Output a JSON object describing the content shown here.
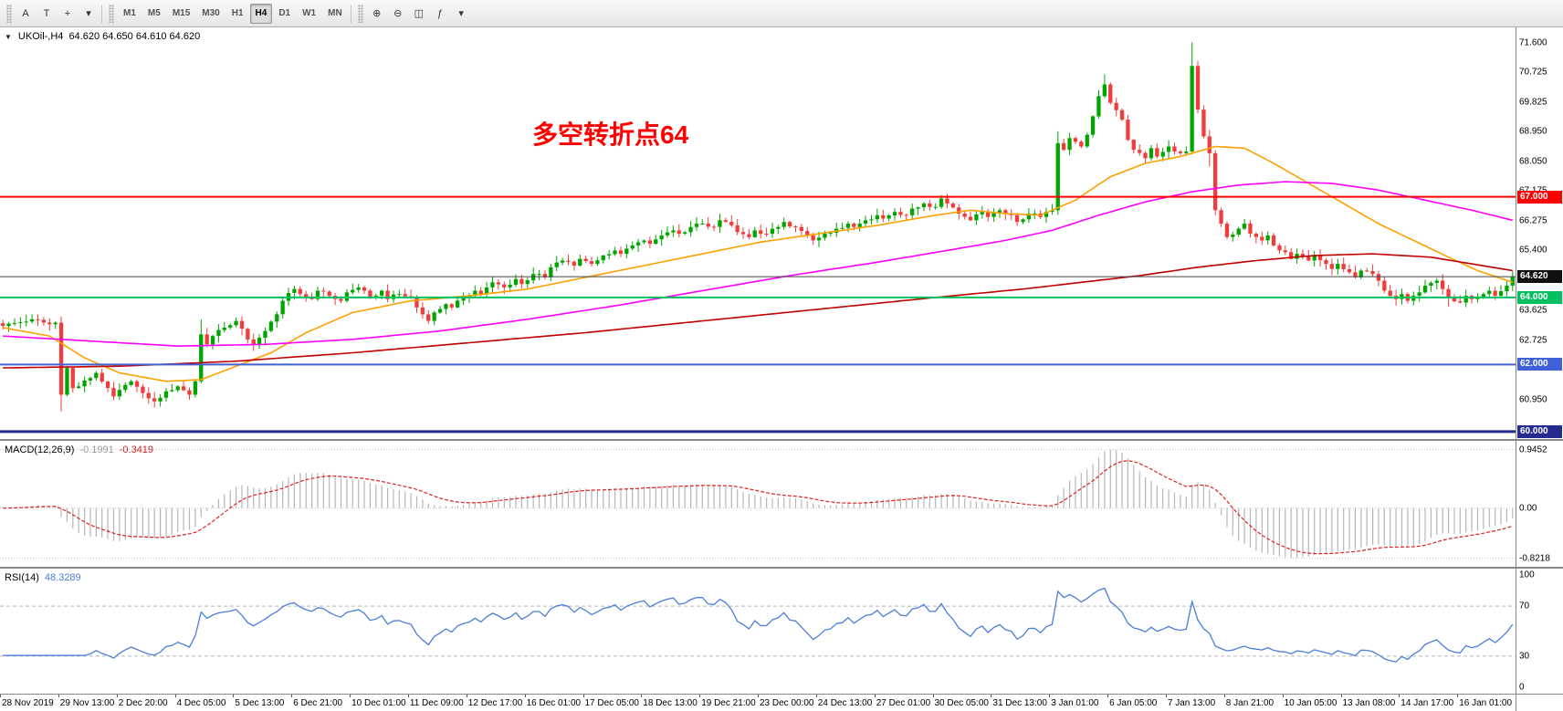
{
  "toolbar": {
    "tools": [
      {
        "name": "text-label-tool",
        "glyph": "A"
      },
      {
        "name": "text-tool",
        "glyph": "T"
      },
      {
        "name": "crosshair-tool",
        "glyph": "+"
      },
      {
        "name": "drawing-tools-dropdown-icon",
        "glyph": "▾"
      }
    ],
    "timeframes": [
      {
        "label": "M1"
      },
      {
        "label": "M5"
      },
      {
        "label": "M15"
      },
      {
        "label": "M30"
      },
      {
        "label": "H1"
      },
      {
        "label": "H4",
        "active": true
      },
      {
        "label": "D1"
      },
      {
        "label": "W1"
      },
      {
        "label": "MN"
      }
    ],
    "right_icons": [
      {
        "name": "zoom-in-icon",
        "glyph": "⊕"
      },
      {
        "name": "zoom-out-icon",
        "glyph": "⊖"
      },
      {
        "name": "tile-windows-icon",
        "glyph": "◫"
      },
      {
        "name": "indicators-icon",
        "glyph": "ƒ"
      },
      {
        "name": "toolbar-dropdown-icon",
        "glyph": "▾"
      }
    ]
  },
  "chart_data": {
    "type": "candlestick",
    "header": {
      "symbol_period": "UKOil-,H4",
      "ohlc": "64.620 64.650 64.610 64.620"
    },
    "annotation": {
      "text": "多空转折点64",
      "color": "#ff0000"
    },
    "price_range": [
      59.78,
      72.05
    ],
    "price_axis_labels": [
      "71.600",
      "70.725",
      "69.825",
      "68.950",
      "68.050",
      "67.175",
      "66.275",
      "65.400",
      "63.625",
      "62.725",
      "60.950"
    ],
    "current_price": {
      "value": 64.62,
      "label": "64.620",
      "badge_bg": "#111111",
      "line_color": "#444444"
    },
    "levels": [
      {
        "price": 67.0,
        "label": "67.000",
        "color": "#ff0000",
        "thickness": 2
      },
      {
        "price": 64.0,
        "label": "64.000",
        "color": "#00c060",
        "thickness": 2
      },
      {
        "price": 62.0,
        "label": "62.000",
        "color": "#4060d8",
        "thickness": 2
      },
      {
        "price": 60.0,
        "label": "60.000",
        "color": "#252a8f",
        "thickness": 3
      }
    ],
    "candles": {
      "count": 260,
      "bull_color": "#00a600",
      "bear_color": "#f23c3c",
      "keypoints": [
        [
          0,
          63.15
        ],
        [
          5,
          63.35
        ],
        [
          8,
          63.2
        ],
        [
          9,
          63.25
        ],
        [
          10,
          61.1
        ],
        [
          11,
          61.9
        ],
        [
          12,
          61.3
        ],
        [
          13,
          61.35
        ],
        [
          16,
          61.75
        ],
        [
          18,
          61.3
        ],
        [
          19,
          61.05
        ],
        [
          22,
          61.5
        ],
        [
          24,
          61.15
        ],
        [
          26,
          60.9
        ],
        [
          28,
          61.2
        ],
        [
          30,
          61.35
        ],
        [
          32,
          61.1
        ],
        [
          33,
          61.5
        ],
        [
          34,
          62.9
        ],
        [
          35,
          62.6
        ],
        [
          36,
          62.85
        ],
        [
          38,
          63.1
        ],
        [
          40,
          63.3
        ],
        [
          42,
          62.75
        ],
        [
          43,
          62.6
        ],
        [
          45,
          63.0
        ],
        [
          47,
          63.5
        ],
        [
          48,
          63.9
        ],
        [
          50,
          64.25
        ],
        [
          51,
          64.1
        ],
        [
          53,
          63.95
        ],
        [
          54,
          64.2
        ],
        [
          56,
          64.05
        ],
        [
          58,
          63.9
        ],
        [
          59,
          64.15
        ],
        [
          61,
          64.3
        ],
        [
          63,
          64.0
        ],
        [
          65,
          64.2
        ],
        [
          66,
          63.95
        ],
        [
          68,
          64.1
        ],
        [
          70,
          64.0
        ],
        [
          71,
          63.7
        ],
        [
          73,
          63.3
        ],
        [
          74,
          63.55
        ],
        [
          76,
          63.8
        ],
        [
          77,
          63.7
        ],
        [
          79,
          64.0
        ],
        [
          81,
          64.2
        ],
        [
          82,
          64.1
        ],
        [
          84,
          64.45
        ],
        [
          86,
          64.3
        ],
        [
          88,
          64.55
        ],
        [
          89,
          64.4
        ],
        [
          91,
          64.7
        ],
        [
          93,
          64.6
        ],
        [
          94,
          64.9
        ],
        [
          96,
          65.1
        ],
        [
          98,
          64.95
        ],
        [
          99,
          65.15
        ],
        [
          101,
          65.0
        ],
        [
          103,
          65.25
        ],
        [
          105,
          65.4
        ],
        [
          106,
          65.3
        ],
        [
          108,
          65.55
        ],
        [
          110,
          65.7
        ],
        [
          111,
          65.6
        ],
        [
          113,
          65.85
        ],
        [
          115,
          66.0
        ],
        [
          116,
          65.9
        ],
        [
          118,
          66.1
        ],
        [
          120,
          66.2
        ],
        [
          122,
          66.1
        ],
        [
          123,
          66.3
        ],
        [
          125,
          66.15
        ],
        [
          126,
          65.95
        ],
        [
          128,
          65.8
        ],
        [
          129,
          66.0
        ],
        [
          131,
          65.9
        ],
        [
          133,
          66.1
        ],
        [
          134,
          66.25
        ],
        [
          136,
          66.1
        ],
        [
          138,
          65.85
        ],
        [
          139,
          65.7
        ],
        [
          141,
          65.9
        ],
        [
          143,
          66.05
        ],
        [
          145,
          66.2
        ],
        [
          146,
          66.1
        ],
        [
          148,
          66.3
        ],
        [
          150,
          66.45
        ],
        [
          151,
          66.35
        ],
        [
          153,
          66.55
        ],
        [
          155,
          66.45
        ],
        [
          156,
          66.65
        ],
        [
          158,
          66.8
        ],
        [
          160,
          66.7
        ],
        [
          161,
          66.95
        ],
        [
          162,
          66.8
        ],
        [
          164,
          66.5
        ],
        [
          166,
          66.3
        ],
        [
          168,
          66.55
        ],
        [
          169,
          66.4
        ],
        [
          171,
          66.6
        ],
        [
          173,
          66.45
        ],
        [
          174,
          66.25
        ],
        [
          176,
          66.5
        ],
        [
          178,
          66.4
        ],
        [
          179,
          66.55
        ],
        [
          180,
          66.6
        ],
        [
          181,
          68.6
        ],
        [
          182,
          68.4
        ],
        [
          183,
          68.75
        ],
        [
          185,
          68.5
        ],
        [
          186,
          68.85
        ],
        [
          187,
          69.4
        ],
        [
          188,
          70.0
        ],
        [
          189,
          70.35
        ],
        [
          190,
          69.8
        ],
        [
          192,
          69.3
        ],
        [
          193,
          68.7
        ],
        [
          194,
          68.4
        ],
        [
          196,
          68.15
        ],
        [
          197,
          68.45
        ],
        [
          198,
          68.2
        ],
        [
          200,
          68.5
        ],
        [
          201,
          68.35
        ],
        [
          202,
          68.3
        ],
        [
          203,
          68.35
        ],
        [
          204,
          70.9
        ],
        [
          205,
          69.6
        ],
        [
          206,
          68.8
        ],
        [
          207,
          68.3
        ],
        [
          208,
          66.6
        ],
        [
          209,
          66.2
        ],
        [
          210,
          65.8
        ],
        [
          212,
          66.05
        ],
        [
          213,
          66.2
        ],
        [
          214,
          65.9
        ],
        [
          216,
          65.7
        ],
        [
          217,
          65.85
        ],
        [
          218,
          65.55
        ],
        [
          220,
          65.35
        ],
        [
          221,
          65.15
        ],
        [
          222,
          65.3
        ],
        [
          224,
          65.1
        ],
        [
          225,
          65.25
        ],
        [
          227,
          65.0
        ],
        [
          228,
          64.85
        ],
        [
          229,
          65.0
        ],
        [
          231,
          64.75
        ],
        [
          232,
          64.6
        ],
        [
          233,
          64.8
        ],
        [
          235,
          64.7
        ],
        [
          236,
          64.5
        ],
        [
          237,
          64.2
        ],
        [
          239,
          63.95
        ],
        [
          240,
          64.1
        ],
        [
          241,
          63.9
        ],
        [
          243,
          64.15
        ],
        [
          244,
          64.35
        ],
        [
          246,
          64.5
        ],
        [
          247,
          64.25
        ],
        [
          248,
          64.0
        ],
        [
          250,
          63.85
        ],
        [
          251,
          64.05
        ],
        [
          252,
          63.95
        ],
        [
          254,
          64.1
        ],
        [
          255,
          64.2
        ],
        [
          256,
          64.05
        ],
        [
          258,
          64.35
        ],
        [
          259,
          64.62
        ]
      ],
      "high_overrides": {
        "34": 63.35,
        "161": 67.05,
        "181": 68.95,
        "189": 70.65,
        "204": 71.6
      },
      "low_overrides": {
        "10": 60.6,
        "26": 60.72,
        "207": 67.9,
        "239": 63.75,
        "248": 63.72
      }
    },
    "overlays": [
      {
        "name": "ma-fast-line",
        "color": "#ffa000",
        "points": [
          [
            0,
            63.1
          ],
          [
            8,
            62.85
          ],
          [
            14,
            62.2
          ],
          [
            20,
            61.75
          ],
          [
            28,
            61.5
          ],
          [
            34,
            61.55
          ],
          [
            40,
            61.95
          ],
          [
            46,
            62.35
          ],
          [
            52,
            62.95
          ],
          [
            60,
            63.55
          ],
          [
            70,
            63.9
          ],
          [
            80,
            64.05
          ],
          [
            90,
            64.25
          ],
          [
            100,
            64.6
          ],
          [
            110,
            64.95
          ],
          [
            120,
            65.3
          ],
          [
            130,
            65.65
          ],
          [
            140,
            65.9
          ],
          [
            150,
            66.15
          ],
          [
            160,
            66.45
          ],
          [
            166,
            66.6
          ],
          [
            172,
            66.5
          ],
          [
            178,
            66.45
          ],
          [
            184,
            66.9
          ],
          [
            190,
            67.6
          ],
          [
            196,
            68.0
          ],
          [
            202,
            68.2
          ],
          [
            208,
            68.5
          ],
          [
            213,
            68.45
          ],
          [
            218,
            68.0
          ],
          [
            224,
            67.4
          ],
          [
            230,
            66.8
          ],
          [
            236,
            66.2
          ],
          [
            242,
            65.7
          ],
          [
            248,
            65.2
          ],
          [
            253,
            64.8
          ],
          [
            259,
            64.45
          ]
        ]
      },
      {
        "name": "ma-mid-line",
        "color": "#ff00ff",
        "points": [
          [
            0,
            62.85
          ],
          [
            15,
            62.7
          ],
          [
            30,
            62.55
          ],
          [
            45,
            62.6
          ],
          [
            60,
            62.75
          ],
          [
            75,
            63.0
          ],
          [
            90,
            63.35
          ],
          [
            105,
            63.75
          ],
          [
            120,
            64.2
          ],
          [
            135,
            64.65
          ],
          [
            150,
            65.05
          ],
          [
            162,
            65.4
          ],
          [
            172,
            65.7
          ],
          [
            180,
            66.0
          ],
          [
            188,
            66.45
          ],
          [
            196,
            66.85
          ],
          [
            204,
            67.15
          ],
          [
            212,
            67.35
          ],
          [
            220,
            67.45
          ],
          [
            228,
            67.4
          ],
          [
            236,
            67.2
          ],
          [
            244,
            66.9
          ],
          [
            252,
            66.6
          ],
          [
            259,
            66.3
          ]
        ]
      },
      {
        "name": "ma-slow-line",
        "color": "#c00000",
        "points": [
          [
            0,
            61.9
          ],
          [
            20,
            61.95
          ],
          [
            40,
            62.1
          ],
          [
            60,
            62.35
          ],
          [
            80,
            62.65
          ],
          [
            100,
            62.95
          ],
          [
            120,
            63.3
          ],
          [
            140,
            63.65
          ],
          [
            160,
            64.0
          ],
          [
            175,
            64.25
          ],
          [
            185,
            64.45
          ],
          [
            195,
            64.65
          ],
          [
            205,
            64.9
          ],
          [
            215,
            65.1
          ],
          [
            225,
            65.25
          ],
          [
            235,
            65.3
          ],
          [
            245,
            65.2
          ],
          [
            252,
            65.0
          ],
          [
            259,
            64.8
          ]
        ]
      }
    ],
    "macd": {
      "label": "MACD(12,26,9)",
      "value_main": "-0.1991",
      "value_signal": "-0.3419",
      "fast": 12,
      "slow": 26,
      "signal": 9,
      "axis_labels": [
        "0.9452",
        "0.00",
        "-0.8218"
      ],
      "histogram_color": "#b6b6b6",
      "signal_color": "#e02020"
    },
    "rsi": {
      "label": "RSI(14)",
      "value": "48.3289",
      "period": 14,
      "axis_labels": [
        "100",
        "70",
        "30",
        "0"
      ],
      "level_lines": [
        70,
        30
      ],
      "line_color": "#4a7edb"
    },
    "time_labels": [
      "28 Nov 2019",
      "29 Nov 13:00",
      "2 Dec 20:00",
      "4 Dec 05:00",
      "5 Dec 13:00",
      "6 Dec 21:00",
      "10 Dec 01:00",
      "11 Dec 09:00",
      "12 Dec 17:00",
      "16 Dec 01:00",
      "17 Dec 05:00",
      "18 Dec 13:00",
      "19 Dec 21:00",
      "23 Dec 00:00",
      "24 Dec 13:00",
      "27 Dec 01:00",
      "30 Dec 05:00",
      "31 Dec 13:00",
      "3 Jan 01:00",
      "6 Jan 05:00",
      "7 Jan 13:00",
      "8 Jan 21:00",
      "10 Jan 05:00",
      "13 Jan 08:00",
      "14 Jan 17:00",
      "16 Jan 01:00"
    ],
    "label_every": 10
  }
}
